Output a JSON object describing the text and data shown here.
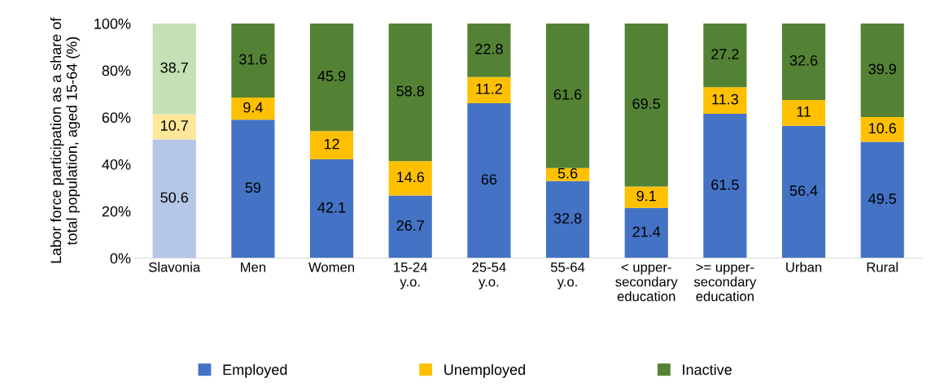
{
  "chart_data": {
    "type": "bar",
    "stacked": true,
    "ylabel": "Labor force participation as a share of\ntotal population, aged 15-64 (%)",
    "categories": [
      "Slavonia",
      "Men",
      "Women",
      "15-24\ny.o.",
      "25-54\ny.o.",
      "55-64\ny.o.",
      "< upper-\nsecondary\neducation",
      ">= upper-\nsecondary\neducation",
      "Urban",
      "Rural"
    ],
    "series": [
      {
        "name": "Employed",
        "color": "#4472c4",
        "colors": [
          "#b4c7e7",
          "#4472c4",
          "#4472c4",
          "#4472c4",
          "#4472c4",
          "#4472c4",
          "#4472c4",
          "#4472c4",
          "#4472c4",
          "#4472c4"
        ],
        "values": [
          50.6,
          59,
          42.1,
          26.7,
          66,
          32.8,
          21.4,
          61.5,
          56.4,
          49.5
        ]
      },
      {
        "name": "Unemployed",
        "color": "#ffc000",
        "colors": [
          "#ffe699",
          "#ffc000",
          "#ffc000",
          "#ffc000",
          "#ffc000",
          "#ffc000",
          "#ffc000",
          "#ffc000",
          "#ffc000",
          "#ffc000"
        ],
        "values": [
          10.7,
          9.4,
          12,
          14.6,
          11.2,
          5.6,
          9.1,
          11.3,
          11,
          10.6
        ]
      },
      {
        "name": "Inactive",
        "color": "#548235",
        "colors": [
          "#c5e0b4",
          "#548235",
          "#548235",
          "#548235",
          "#548235",
          "#548235",
          "#548235",
          "#548235",
          "#548235",
          "#548235"
        ],
        "values": [
          38.7,
          31.6,
          45.9,
          58.8,
          22.8,
          61.6,
          69.5,
          27.2,
          32.6,
          39.9
        ]
      }
    ],
    "ylim": [
      0,
      100
    ],
    "yticks": [
      {
        "value": 0,
        "label": "0%"
      },
      {
        "value": 20,
        "label": "20%"
      },
      {
        "value": 40,
        "label": "40%"
      },
      {
        "value": 60,
        "label": "60%"
      },
      {
        "value": 80,
        "label": "80%"
      },
      {
        "value": 100,
        "label": "100%"
      }
    ],
    "data_labels": true,
    "grid": false,
    "legend": "bottom"
  }
}
